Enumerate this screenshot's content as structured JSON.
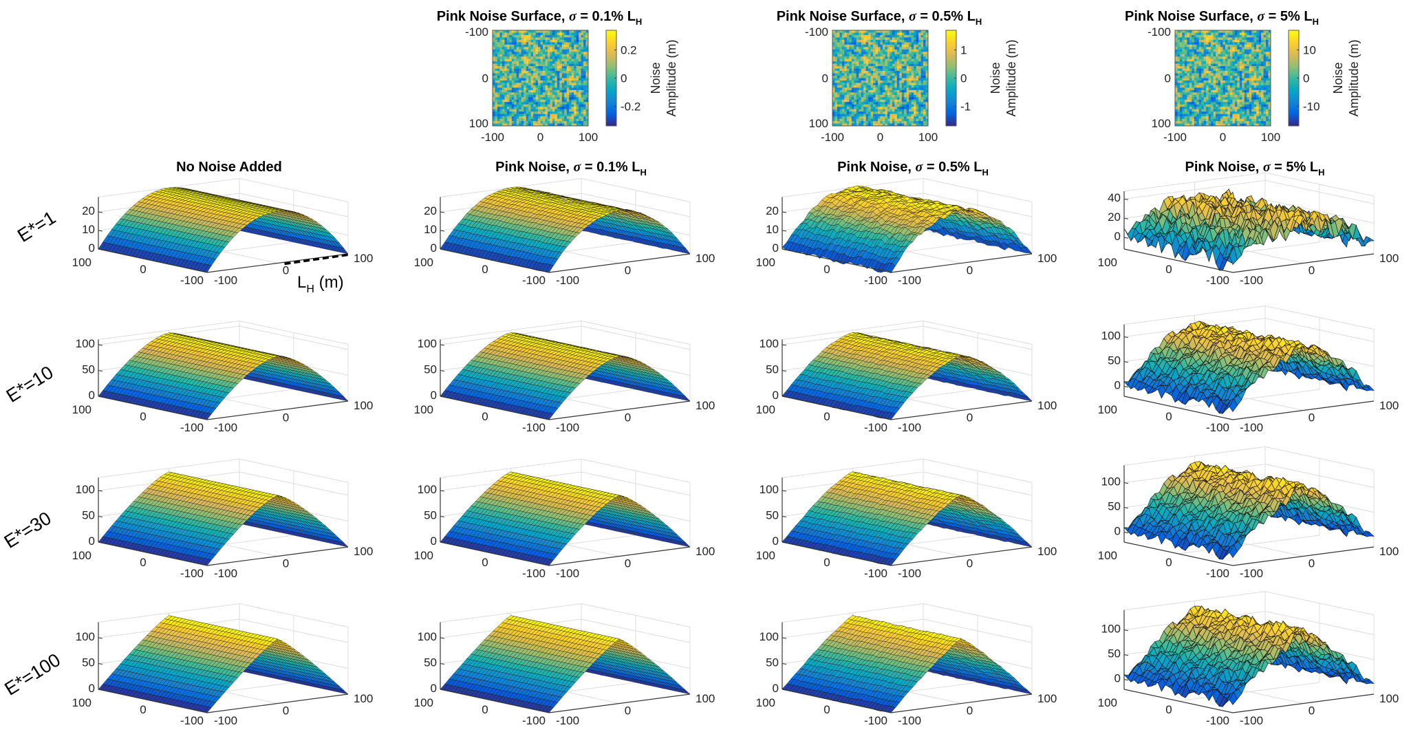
{
  "row_labels": [
    "E*=1",
    "E*=10",
    "E*=30",
    "E*=100"
  ],
  "column_titles": [
    {
      "main": "No Noise Added",
      "sigma": "",
      "rest": "",
      "sub": ""
    },
    {
      "main": "Pink Noise, ",
      "sigma": "σ",
      "rest": " = 0.1% L",
      "sub": "H"
    },
    {
      "main": "Pink Noise, ",
      "sigma": "σ",
      "rest": " = 0.5% L",
      "sub": "H"
    },
    {
      "main": "Pink Noise, ",
      "sigma": "σ",
      "rest": " = 5% L",
      "sub": "H"
    }
  ],
  "annotation": {
    "text": "L",
    "sub": "H",
    "unit": " (m)"
  },
  "colormap": [
    "#352a87",
    "#0363e1",
    "#1485d4",
    "#06a7c6",
    "#38b99e",
    "#92bf73",
    "#d9ba56",
    "#fcce2e",
    "#f9fb0e"
  ],
  "chart_data": [
    {
      "type": "heatmap",
      "column": 1,
      "title": {
        "main": "Pink Noise Surface, ",
        "sigma": "σ",
        "rest": " = 0.1% L",
        "sub": "H"
      },
      "xticks": [
        "-100",
        "0",
        "100"
      ],
      "yticks": [
        "-100",
        "0",
        "100"
      ],
      "xlim": [
        -100,
        100
      ],
      "ylim": [
        -100,
        100
      ],
      "colorbar": {
        "ticks": [
          0.2,
          0,
          -0.2
        ],
        "tick_labels": [
          "0.2",
          "0",
          "-0.2"
        ],
        "clim": [
          -0.34,
          0.34
        ],
        "label_line1": "Noise",
        "label_line2": "Amplitude (m)"
      }
    },
    {
      "type": "heatmap",
      "column": 2,
      "title": {
        "main": "Pink Noise Surface, ",
        "sigma": "σ",
        "rest": " = 0.5% L",
        "sub": "H"
      },
      "xticks": [
        "-100",
        "0",
        "100"
      ],
      "yticks": [
        "-100",
        "0",
        "100"
      ],
      "xlim": [
        -100,
        100
      ],
      "ylim": [
        -100,
        100
      ],
      "colorbar": {
        "ticks": [
          1,
          0,
          -1
        ],
        "tick_labels": [
          "1",
          "0",
          "-1"
        ],
        "clim": [
          -1.7,
          1.7
        ],
        "label_line1": "Noise",
        "label_line2": "Amplitude (m)"
      }
    },
    {
      "type": "heatmap",
      "column": 3,
      "title": {
        "main": "Pink Noise Surface, ",
        "sigma": "σ",
        "rest": " = 5% L",
        "sub": "H"
      },
      "xticks": [
        "-100",
        "0",
        "100"
      ],
      "yticks": [
        "-100",
        "0",
        "100"
      ],
      "xlim": [
        -100,
        100
      ],
      "ylim": [
        -100,
        100
      ],
      "colorbar": {
        "ticks": [
          10,
          0,
          -10
        ],
        "tick_labels": [
          "10",
          "0",
          "-10"
        ],
        "clim": [
          -17,
          17
        ],
        "label_line1": "Noise",
        "label_line2": "Amplitude (m)"
      }
    },
    {
      "type": "surface",
      "row": 0,
      "column": 0,
      "noise_heatmap": null,
      "peak_height": 28,
      "zlim": [
        0,
        28
      ],
      "zticks": [
        "0",
        "10",
        "20"
      ],
      "xticks": [
        "100",
        "0",
        "-100"
      ],
      "yticks": [
        "-100",
        "0",
        "100"
      ]
    },
    {
      "type": "surface",
      "row": 0,
      "column": 1,
      "noise_heatmap": 0,
      "peak_height": 28,
      "zlim": [
        0,
        28
      ],
      "zticks": [
        "0",
        "10",
        "20"
      ],
      "xticks": [
        "100",
        "0",
        "-100"
      ],
      "yticks": [
        "-100",
        "0",
        "100"
      ]
    },
    {
      "type": "surface",
      "row": 0,
      "column": 2,
      "noise_heatmap": 1,
      "peak_height": 28,
      "zlim": [
        0,
        28
      ],
      "zticks": [
        "0",
        "10",
        "20"
      ],
      "xticks": [
        "100",
        "0",
        "-100"
      ],
      "yticks": [
        "-100",
        "0",
        "100"
      ]
    },
    {
      "type": "surface",
      "row": 0,
      "column": 3,
      "noise_heatmap": 2,
      "peak_height": 28,
      "zlim": [
        -12,
        48
      ],
      "zticks": [
        "0",
        "20",
        "40"
      ],
      "xticks": [
        "100",
        "0",
        "-100"
      ],
      "yticks": [
        "-100",
        "0",
        "100"
      ]
    },
    {
      "type": "surface",
      "row": 1,
      "column": 0,
      "noise_heatmap": null,
      "peak_height": 105,
      "zlim": [
        0,
        110
      ],
      "zticks": [
        "0",
        "50",
        "100"
      ],
      "xticks": [
        "100",
        "0",
        "-100"
      ],
      "yticks": [
        "-100",
        "0",
        "100"
      ]
    },
    {
      "type": "surface",
      "row": 1,
      "column": 1,
      "noise_heatmap": 0,
      "peak_height": 105,
      "zlim": [
        0,
        110
      ],
      "zticks": [
        "0",
        "50",
        "100"
      ],
      "xticks": [
        "100",
        "0",
        "-100"
      ],
      "yticks": [
        "-100",
        "0",
        "100"
      ]
    },
    {
      "type": "surface",
      "row": 1,
      "column": 2,
      "noise_heatmap": 1,
      "peak_height": 105,
      "zlim": [
        0,
        110
      ],
      "zticks": [
        "0",
        "50",
        "100"
      ],
      "xticks": [
        "100",
        "0",
        "-100"
      ],
      "yticks": [
        "-100",
        "0",
        "100"
      ]
    },
    {
      "type": "surface",
      "row": 1,
      "column": 3,
      "noise_heatmap": 2,
      "peak_height": 105,
      "zlim": [
        -20,
        125
      ],
      "zticks": [
        "0",
        "50",
        "100"
      ],
      "xticks": [
        "100",
        "0",
        "-100"
      ],
      "yticks": [
        "-100",
        "0",
        "100"
      ]
    },
    {
      "type": "surface",
      "row": 2,
      "column": 0,
      "noise_heatmap": null,
      "peak_height": 118,
      "zlim": [
        0,
        125
      ],
      "zticks": [
        "0",
        "50",
        "100"
      ],
      "xticks": [
        "100",
        "0",
        "-100"
      ],
      "yticks": [
        "-100",
        "0",
        "100"
      ]
    },
    {
      "type": "surface",
      "row": 2,
      "column": 1,
      "noise_heatmap": 0,
      "peak_height": 118,
      "zlim": [
        0,
        125
      ],
      "zticks": [
        "0",
        "50",
        "100"
      ],
      "xticks": [
        "100",
        "0",
        "-100"
      ],
      "yticks": [
        "-100",
        "0",
        "100"
      ]
    },
    {
      "type": "surface",
      "row": 2,
      "column": 2,
      "noise_heatmap": 1,
      "peak_height": 118,
      "zlim": [
        0,
        125
      ],
      "zticks": [
        "0",
        "50",
        "100"
      ],
      "xticks": [
        "100",
        "0",
        "-100"
      ],
      "yticks": [
        "-100",
        "0",
        "100"
      ]
    },
    {
      "type": "surface",
      "row": 2,
      "column": 3,
      "noise_heatmap": 2,
      "peak_height": 118,
      "zlim": [
        -20,
        135
      ],
      "zticks": [
        "0",
        "50",
        "100"
      ],
      "xticks": [
        "100",
        "0",
        "-100"
      ],
      "yticks": [
        "-100",
        "0",
        "100"
      ]
    },
    {
      "type": "surface",
      "row": 3,
      "column": 0,
      "noise_heatmap": null,
      "peak_height": 125,
      "zlim": [
        0,
        130
      ],
      "zticks": [
        "0",
        "50",
        "100"
      ],
      "xticks": [
        "100",
        "0",
        "-100"
      ],
      "yticks": [
        "-100",
        "0",
        "100"
      ]
    },
    {
      "type": "surface",
      "row": 3,
      "column": 1,
      "noise_heatmap": 0,
      "peak_height": 125,
      "zlim": [
        0,
        130
      ],
      "zticks": [
        "0",
        "50",
        "100"
      ],
      "xticks": [
        "100",
        "0",
        "-100"
      ],
      "yticks": [
        "-100",
        "0",
        "100"
      ]
    },
    {
      "type": "surface",
      "row": 3,
      "column": 2,
      "noise_heatmap": 1,
      "peak_height": 125,
      "zlim": [
        0,
        130
      ],
      "zticks": [
        "0",
        "50",
        "100"
      ],
      "xticks": [
        "100",
        "0",
        "-100"
      ],
      "yticks": [
        "-100",
        "0",
        "100"
      ]
    },
    {
      "type": "surface",
      "row": 3,
      "column": 3,
      "noise_heatmap": 2,
      "peak_height": 125,
      "zlim": [
        -20,
        140
      ],
      "zticks": [
        "0",
        "50",
        "100"
      ],
      "xticks": [
        "100",
        "0",
        "-100"
      ],
      "yticks": [
        "-100",
        "0",
        "100"
      ]
    }
  ]
}
